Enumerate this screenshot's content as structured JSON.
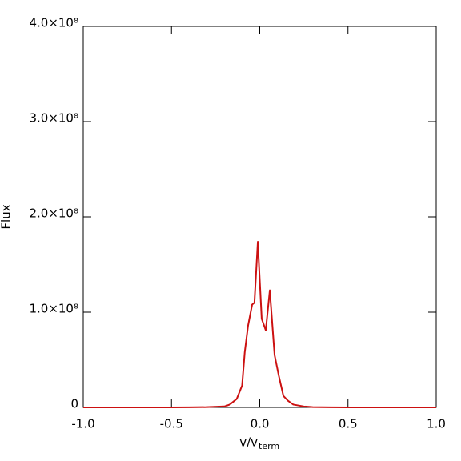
{
  "chart_data": {
    "type": "line",
    "ylabel": "Flux",
    "xlabel": {
      "main": "v/v",
      "sub": "term"
    },
    "x": [
      -1.0,
      -0.9,
      -0.8,
      -0.7,
      -0.6,
      -0.5,
      -0.4,
      -0.3,
      -0.2,
      -0.17,
      -0.13,
      -0.1,
      -0.085,
      -0.066,
      -0.043,
      -0.03,
      -0.011,
      0.011,
      0.034,
      0.057,
      0.084,
      0.107,
      0.134,
      0.16,
      0.19,
      0.25,
      0.3,
      0.4,
      0.5,
      0.6,
      0.7,
      0.8,
      0.9,
      1.0
    ],
    "series": [
      {
        "name": "Flux",
        "color": "#cc1111",
        "values": [
          0,
          0,
          0,
          0,
          0,
          0,
          100000,
          300000,
          1000000,
          3000000,
          9000000,
          23000000,
          58000000,
          86000000,
          108000000,
          110000000,
          174000000,
          93000000,
          81000000,
          123000000,
          55000000,
          34000000,
          12000000,
          7000000,
          3000000,
          1000000,
          300000,
          100000,
          0,
          0,
          0,
          0,
          0,
          0
        ]
      }
    ],
    "xlim": [
      -1.0,
      1.0
    ],
    "ylim": [
      0,
      400000000
    ],
    "xticks": [
      {
        "value": -1.0,
        "label": "-1.0"
      },
      {
        "value": -0.5,
        "label": "-0.5"
      },
      {
        "value": 0,
        "label": "0.0"
      },
      {
        "value": 0.5,
        "label": "0.5"
      },
      {
        "value": 1.0,
        "label": "1.0"
      }
    ],
    "yticks": [
      {
        "value": 0,
        "label": "0"
      },
      {
        "value": 100000000,
        "label": "1.0×10⁸"
      },
      {
        "value": 200000000,
        "label": "2.0×10⁸"
      },
      {
        "value": 300000000,
        "label": "3.0×10⁸"
      },
      {
        "value": 400000000,
        "label": "4.0×10⁸"
      }
    ],
    "grid": false
  }
}
